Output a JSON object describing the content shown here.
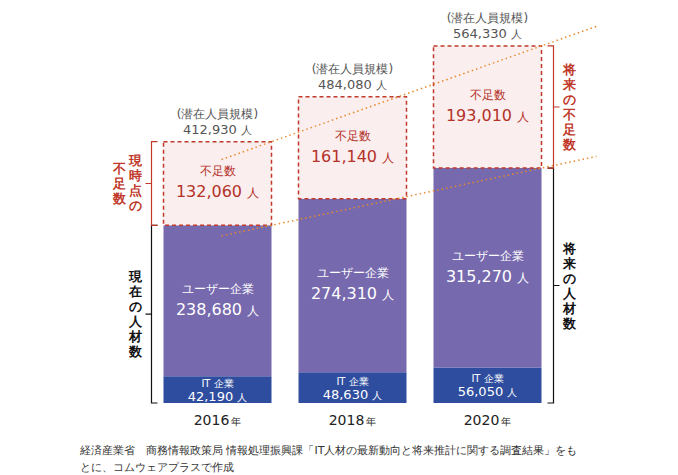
{
  "chart_data": {
    "type": "bar",
    "stacked": true,
    "data_labels": true,
    "tick_labels": "x",
    "categories": [
      "2016年",
      "2018年",
      "2020年"
    ],
    "ylim": [
      0,
      580000
    ],
    "series": [
      {
        "name": "IT 企業",
        "color": "#2e4d9e",
        "values": [
          42190,
          48630,
          56050
        ],
        "value_labels": [
          "42,190 人",
          "48,630 人",
          "56,050 人"
        ]
      },
      {
        "name": "ユーザー企業",
        "color": "#7669ae",
        "values": [
          238680,
          274310,
          315270
        ],
        "value_labels": [
          "238,680 人",
          "274,310 人",
          "315,270 人"
        ]
      },
      {
        "name": "不足数",
        "color": "#fbeeee",
        "line_style": "dashed",
        "values": [
          132060,
          161140,
          193010
        ],
        "value_labels": [
          "132,060 人",
          "161,140 人",
          "193,010 人"
        ]
      }
    ],
    "totals": {
      "label": "(潜在人員規模)",
      "values": [
        412930,
        484080,
        564330
      ],
      "value_labels": [
        "412,930 人",
        "484,080 人",
        "564,330 人"
      ]
    },
    "annotations": [
      {
        "text": "現時点の不足数",
        "color": "#c0392b"
      },
      {
        "text": "現在の人材数",
        "color": "#111111"
      },
      {
        "text": "将来の不足数",
        "color": "#c0392b"
      },
      {
        "text": "将来の人材数",
        "color": "#111111"
      }
    ],
    "source": "経済産業省　商務情報政策局 情報処理振興課「IT人材の最新動向と将来推計に関する調査結果」をもとに、コムウェアプラスで作成"
  }
}
